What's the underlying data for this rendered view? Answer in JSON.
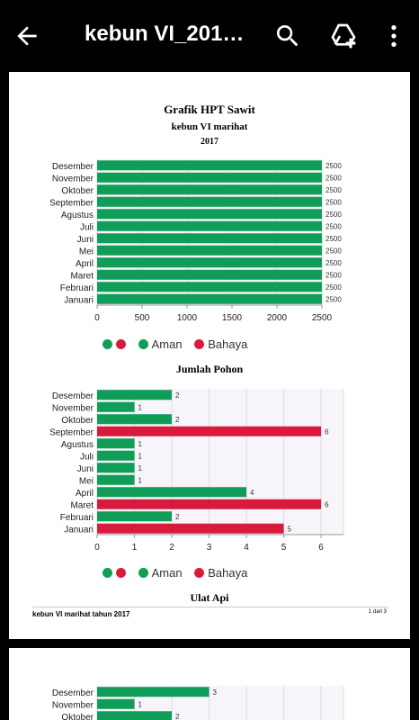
{
  "appbar": {
    "title": "kebun VI_201…",
    "back_icon": "arrow-back-icon",
    "search_icon": "search-icon",
    "drive_icon": "drive-add-icon",
    "menu_icon": "more-vert-icon"
  },
  "document": {
    "title": "Grafik HPT Sawit",
    "subtitle": "kebun VI marihat",
    "year": "2017",
    "footer_left": "kebun VI marihat  tahun 2017",
    "footer_right": "1 dari 3"
  },
  "colors": {
    "aman": "#0f9d58",
    "bahaya": "#d81b3c",
    "grid": "#dddddd"
  },
  "legend": {
    "aman": "Aman",
    "bahaya": "Bahaya"
  },
  "chart_data": [
    {
      "type": "bar",
      "title": "",
      "categories": [
        "Desember",
        "November",
        "Oktober",
        "September",
        "Agustus",
        "Juli",
        "Juni",
        "Mei",
        "April",
        "Maret",
        "Februari",
        "Januari"
      ],
      "values": [
        2500,
        2500,
        2500,
        2500,
        2500,
        2500,
        2500,
        2500,
        2500,
        2500,
        2500,
        2500
      ],
      "status": [
        "aman",
        "aman",
        "aman",
        "aman",
        "aman",
        "aman",
        "aman",
        "aman",
        "aman",
        "aman",
        "aman",
        "aman"
      ],
      "xticks": [
        "0",
        "500",
        "1000",
        "1500",
        "2000",
        "2500"
      ],
      "xlim": [
        0,
        2500
      ],
      "grid": true,
      "legend": "bottom"
    },
    {
      "type": "bar",
      "title": "Jumlah Pohon",
      "categories": [
        "Desember",
        "November",
        "Oktober",
        "September",
        "Agustus",
        "Juli",
        "Juni",
        "Mei",
        "April",
        "Maret",
        "Februari",
        "Januari"
      ],
      "values": [
        2,
        1,
        2,
        6,
        1,
        1,
        1,
        1,
        4,
        6,
        2,
        5
      ],
      "status": [
        "aman",
        "aman",
        "aman",
        "bahaya",
        "aman",
        "aman",
        "aman",
        "aman",
        "aman",
        "bahaya",
        "aman",
        "bahaya"
      ],
      "xticks": [
        "0",
        "1",
        "2",
        "3",
        "4",
        "5",
        "6"
      ],
      "xlim": [
        0,
        6.6
      ],
      "grid": true,
      "legend": "bottom"
    },
    {
      "type": "bar",
      "title": "Ulat Api",
      "categories": [
        "Desember",
        "November",
        "Oktober"
      ],
      "values": [
        3,
        1,
        2
      ],
      "status": [
        "aman",
        "aman",
        "aman"
      ],
      "xlim": [
        0,
        6.6
      ],
      "grid": true
    }
  ]
}
